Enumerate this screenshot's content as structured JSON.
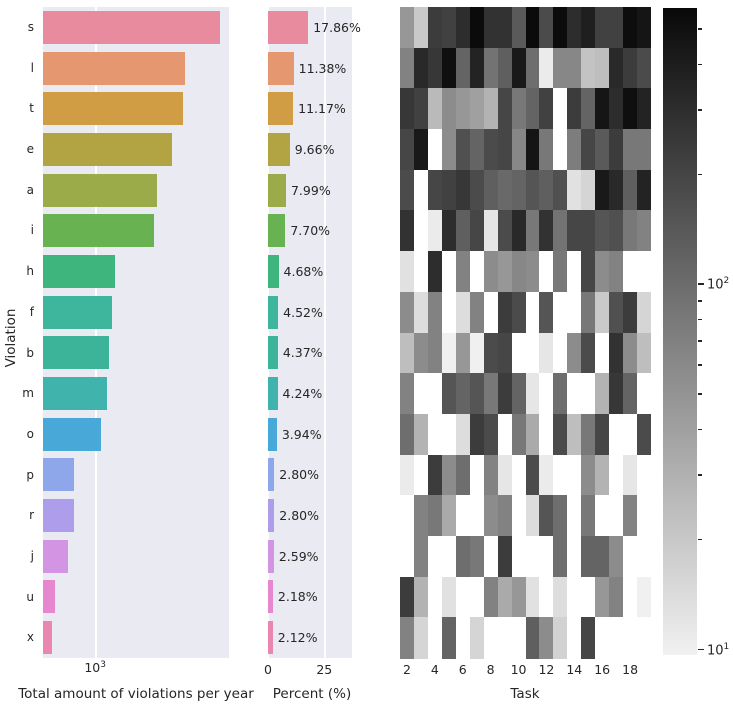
{
  "style": {
    "panel_bg": "#eaeaf2",
    "grid_color": "#ffffff",
    "text_color": "#262626",
    "palette": [
      "#e98b9f",
      "#e59770",
      "#d09c44",
      "#b2a443",
      "#9cab4a",
      "#69b251",
      "#3fb57e",
      "#3eb69d",
      "#3cb49a",
      "#3fb3ac",
      "#48a8d8",
      "#8ea6ea",
      "#ad9dea",
      "#d394e4",
      "#e687cf",
      "#ea87b0"
    ]
  },
  "chart_data": [
    {
      "type": "bar",
      "orientation": "horizontal",
      "title": "",
      "ylabel": "Violation",
      "xlabel": "Total amount of violations per year",
      "xscale": "log",
      "xlim": [
        515,
        5480
      ],
      "categories": [
        "s",
        "l",
        "t",
        "e",
        "a",
        "i",
        "h",
        "f",
        "b",
        "m",
        "o",
        "p",
        "r",
        "j",
        "u",
        "x"
      ],
      "values": [
        4894,
        3118,
        3061,
        2647,
        2189,
        2110,
        1282,
        1238,
        1197,
        1162,
        1080,
        767,
        767,
        710,
        597,
        581
      ],
      "xticks": [
        {
          "value": 1000,
          "base": "10",
          "exp": "3"
        }
      ],
      "grid": "vertical-white-on-lavender"
    },
    {
      "type": "bar",
      "orientation": "horizontal",
      "title": "",
      "ylabel": "",
      "xlabel": "Percent (%)",
      "xscale": "linear",
      "xlim": [
        0,
        37.3
      ],
      "categories": [
        "s",
        "l",
        "t",
        "e",
        "a",
        "i",
        "h",
        "f",
        "b",
        "m",
        "o",
        "p",
        "r",
        "j",
        "u",
        "x"
      ],
      "values": [
        17.86,
        11.38,
        11.17,
        9.66,
        7.99,
        7.7,
        4.68,
        4.52,
        4.37,
        4.24,
        3.94,
        2.8,
        2.8,
        2.59,
        2.18,
        2.12
      ],
      "bar_labels": [
        "17.86%",
        "11.38%",
        "11.17%",
        "9.66%",
        "7.99%",
        "7.70%",
        "4.68%",
        "4.52%",
        "4.37%",
        "4.24%",
        "3.94%",
        "2.80%",
        "2.80%",
        "2.59%",
        "2.18%",
        "2.12%"
      ],
      "xticks": [
        {
          "value": 0,
          "label": "0"
        },
        {
          "value": 25,
          "label": "25"
        }
      ],
      "grid": "vertical-white-on-lavender"
    },
    {
      "type": "heatmap",
      "title": "",
      "xlabel": "Task",
      "ylabel": "",
      "colormap": "Greys (log scale)",
      "vmin": 9.6,
      "vmax": 568,
      "row_categories": [
        "s",
        "l",
        "t",
        "e",
        "a",
        "i",
        "h",
        "f",
        "b",
        "m",
        "o",
        "p",
        "r",
        "j",
        "u",
        "x"
      ],
      "col_tasks": [
        2,
        3,
        4,
        5,
        6,
        7,
        8,
        9,
        10,
        11,
        12,
        13,
        14,
        15,
        16,
        17,
        18,
        19
      ],
      "xticks": [
        {
          "value": 2,
          "label": "2"
        },
        {
          "value": 4,
          "label": "4"
        },
        {
          "value": 6,
          "label": "6"
        },
        {
          "value": 8,
          "label": "8"
        },
        {
          "value": 10,
          "label": "10"
        },
        {
          "value": 12,
          "label": "12"
        },
        {
          "value": 14,
          "label": "14"
        },
        {
          "value": 16,
          "label": "16"
        },
        {
          "value": 18,
          "label": "18"
        }
      ],
      "rows": [
        [
          48,
          20,
          235,
          216,
          306,
          560,
          280,
          280,
          139,
          560,
          182,
          560,
          306,
          395,
          216,
          216,
          540,
          465
        ],
        [
          69,
          330,
          257,
          520,
          117,
          365,
          90,
          128,
          435,
          98,
          11,
          63,
          63,
          22,
          24,
          330,
          235,
          182
        ],
        [
          257,
          216,
          26,
          58,
          48,
          41,
          29,
          198,
          82,
          117,
          216,
          null,
          235,
          117,
          465,
          306,
          520,
          365
        ],
        [
          198,
          435,
          null,
          58,
          166,
          117,
          182,
          198,
          63,
          465,
          82,
          null,
          75,
          198,
          139,
          235,
          82,
          82
        ],
        [
          182,
          null,
          198,
          216,
          257,
          182,
          128,
          107,
          117,
          152,
          128,
          166,
          13,
          16,
          435,
          330,
          128,
          365
        ],
        [
          280,
          null,
          11,
          306,
          128,
          198,
          12,
          182,
          330,
          82,
          280,
          90,
          198,
          198,
          152,
          166,
          82,
          69
        ],
        [
          13,
          null,
          306,
          null,
          69,
          null,
          58,
          48,
          63,
          58,
          null,
          82,
          null,
          198,
          58,
          69,
          null,
          null
        ],
        [
          58,
          14,
          69,
          null,
          14,
          69,
          null,
          235,
          182,
          null,
          152,
          null,
          null,
          82,
          20,
          166,
          235,
          16
        ],
        [
          24,
          58,
          69,
          10,
          48,
          10,
          182,
          198,
          null,
          null,
          12,
          null,
          58,
          182,
          null,
          280,
          58,
          24
        ],
        [
          69,
          null,
          null,
          152,
          117,
          152,
          82,
          235,
          117,
          12,
          null,
          98,
          null,
          null,
          29,
          257,
          117,
          null
        ],
        [
          98,
          29,
          null,
          null,
          14,
          235,
          182,
          null,
          82,
          34,
          null,
          182,
          24,
          82,
          198,
          null,
          null,
          182
        ],
        [
          11,
          null,
          235,
          58,
          98,
          null,
          69,
          12,
          null,
          182,
          11,
          null,
          null,
          58,
          29,
          null,
          12,
          null
        ],
        [
          null,
          69,
          82,
          34,
          null,
          null,
          58,
          69,
          null,
          14,
          152,
          98,
          null,
          82,
          null,
          null,
          69,
          null
        ],
        [
          null,
          69,
          null,
          null,
          98,
          82,
          null,
          235,
          null,
          null,
          null,
          98,
          null,
          117,
          117,
          58,
          null,
          null
        ],
        [
          235,
          29,
          null,
          13,
          null,
          null,
          69,
          34,
          48,
          13,
          null,
          14,
          null,
          null,
          48,
          69,
          null,
          10
        ],
        [
          69,
          16,
          null,
          117,
          null,
          16,
          null,
          null,
          null,
          128,
          58,
          17,
          null,
          198,
          null,
          null,
          null,
          null
        ]
      ]
    }
  ],
  "colorbar": {
    "scale": "log",
    "vmin": 9.6,
    "vmax": 568,
    "major_ticks": [
      {
        "value": 100,
        "base": "10",
        "exp": "2"
      },
      {
        "value": 10,
        "base": "10",
        "exp": "1"
      }
    ],
    "minor_ticks": [
      500,
      400,
      300,
      200,
      90,
      80,
      70,
      60,
      50,
      40,
      30,
      20
    ]
  }
}
